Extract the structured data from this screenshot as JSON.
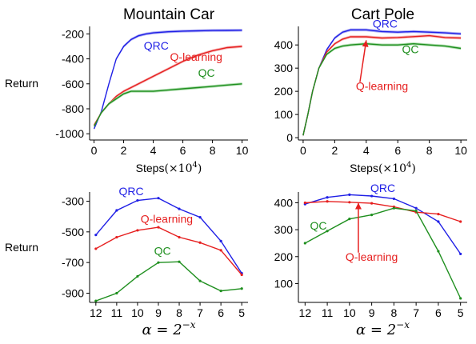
{
  "chart_data": [
    {
      "type": "line",
      "title": "Mountain Car",
      "ylabel": "Return",
      "xlabel": "Steps",
      "xlabel_unit": "(×10",
      "xlabel_exp": "4",
      "xlabel_close": ")",
      "xlim": [
        -0.3,
        10.4
      ],
      "ylim": [
        -1050,
        -140
      ],
      "xticks": [
        0,
        2,
        4,
        6,
        8,
        10
      ],
      "yticks": [
        -200,
        -400,
        -600,
        -800,
        -1000
      ],
      "band": true,
      "series": [
        {
          "name": "QRC",
          "color": "#1f1fe6",
          "band_color": "#8a8af0",
          "x": [
            0,
            0.5,
            1,
            1.5,
            2,
            2.5,
            3,
            3.5,
            4,
            5,
            6,
            7,
            8,
            9,
            10
          ],
          "y": [
            -960,
            -820,
            -600,
            -400,
            -300,
            -245,
            -215,
            -200,
            -192,
            -183,
            -178,
            -175,
            -173,
            -172,
            -171
          ]
        },
        {
          "name": "Q-learning",
          "color": "#e61f1f",
          "band_color": "#f29a9a",
          "x": [
            0,
            0.5,
            1,
            1.5,
            2,
            3,
            4,
            5,
            6,
            7,
            8,
            9,
            10
          ],
          "y": [
            -930,
            -830,
            -760,
            -700,
            -660,
            -600,
            -540,
            -480,
            -420,
            -370,
            -335,
            -310,
            -300
          ]
        },
        {
          "name": "QC",
          "color": "#1f8f1f",
          "band_color": "#8fd08f",
          "x": [
            0,
            0.5,
            1,
            1.5,
            2,
            2.5,
            3,
            4,
            5,
            6,
            7,
            8,
            9,
            10
          ],
          "y": [
            -940,
            -830,
            -760,
            -720,
            -680,
            -660,
            -660,
            -660,
            -650,
            -640,
            -630,
            -620,
            -610,
            -600
          ]
        }
      ],
      "labels": [
        {
          "series": 0,
          "text": "QRC",
          "x": 4.2,
          "y": -325
        },
        {
          "series": 1,
          "text": "Q-learning",
          "x": 6.9,
          "y": -415
        },
        {
          "series": 2,
          "text": "QC",
          "x": 7.6,
          "y": -545
        }
      ]
    },
    {
      "type": "line",
      "title": "Cart Pole",
      "ylabel": "",
      "xlabel": "Steps",
      "xlabel_unit": "(×10",
      "xlabel_exp": "4",
      "xlabel_close": ")",
      "xlim": [
        -0.3,
        10.4
      ],
      "ylim": [
        -10,
        480
      ],
      "xticks": [
        0,
        2,
        4,
        6,
        8,
        10
      ],
      "yticks": [
        0,
        100,
        200,
        300,
        400
      ],
      "band": true,
      "series": [
        {
          "name": "QRC",
          "color": "#1f1fe6",
          "band_color": "#8a8af0",
          "x": [
            0,
            0.3,
            0.6,
            1,
            1.5,
            2,
            2.5,
            3,
            4,
            5,
            6,
            7,
            8,
            9,
            10
          ],
          "y": [
            10,
            100,
            200,
            300,
            380,
            430,
            455,
            465,
            465,
            458,
            455,
            458,
            455,
            452,
            448
          ]
        },
        {
          "name": "Q-learning",
          "color": "#e61f1f",
          "band_color": "#f29a9a",
          "x": [
            0,
            0.3,
            0.6,
            1,
            1.5,
            2,
            2.5,
            3,
            4,
            5,
            6,
            7,
            8,
            9,
            10
          ],
          "y": [
            10,
            100,
            200,
            300,
            370,
            405,
            425,
            435,
            435,
            430,
            432,
            436,
            440,
            432,
            430
          ]
        },
        {
          "name": "QC",
          "color": "#1f8f1f",
          "band_color": "#8fd08f",
          "x": [
            0,
            0.3,
            0.6,
            1,
            1.5,
            2,
            2.5,
            3,
            4,
            5,
            6,
            7,
            8,
            9,
            10
          ],
          "y": [
            10,
            100,
            200,
            300,
            360,
            385,
            395,
            400,
            405,
            400,
            400,
            405,
            400,
            395,
            385
          ]
        }
      ],
      "labels": [
        {
          "series": 0,
          "text": "QRC",
          "x": 5.2,
          "y": 475
        },
        {
          "series": 2,
          "text": "QC",
          "x": 6.8,
          "y": 365
        },
        {
          "series": 1,
          "text": "Q-learning",
          "x": 5.0,
          "y": 205
        }
      ],
      "arrow": {
        "series": 1,
        "from": [
          3.6,
          240
        ],
        "to": [
          4.0,
          420
        ]
      }
    },
    {
      "type": "line",
      "title": "",
      "ylabel": "Return",
      "xlabel": "α = 2^−x",
      "xlim": [
        12.3,
        4.7
      ],
      "ylim": [
        -960,
        -240
      ],
      "xticks": [
        12,
        11,
        10,
        9,
        8,
        7,
        6,
        5
      ],
      "yticks": [
        -300,
        -500,
        -700,
        -900
      ],
      "band": false,
      "series": [
        {
          "name": "QRC",
          "color": "#1f1fe6",
          "x": [
            12,
            11,
            10,
            9,
            8,
            7,
            6,
            5
          ],
          "y": [
            -520,
            -360,
            -295,
            -280,
            -350,
            -405,
            -560,
            -770
          ]
        },
        {
          "name": "Q-learning",
          "color": "#e61f1f",
          "x": [
            12,
            11,
            10,
            9,
            8,
            7,
            6,
            5
          ],
          "y": [
            -610,
            -535,
            -490,
            -470,
            -535,
            -570,
            -620,
            -780
          ]
        },
        {
          "name": "QC",
          "color": "#1f8f1f",
          "x": [
            12,
            11,
            10,
            9,
            8,
            7,
            6,
            5
          ],
          "y": [
            -950,
            -900,
            -790,
            -700,
            -695,
            -820,
            -885,
            -870
          ]
        }
      ],
      "labels": [
        {
          "series": 0,
          "text": "QRC",
          "x": 10.3,
          "y": -260
        },
        {
          "series": 1,
          "text": "Q-learning",
          "x": 8.6,
          "y": -440
        },
        {
          "series": 2,
          "text": "QC",
          "x": 8.8,
          "y": -650
        }
      ]
    },
    {
      "type": "line",
      "title": "",
      "ylabel": "",
      "xlabel": "α = 2^−x",
      "xlim": [
        12.3,
        4.7
      ],
      "ylim": [
        30,
        440
      ],
      "xticks": [
        12,
        11,
        10,
        9,
        8,
        7,
        6,
        5
      ],
      "yticks": [
        100,
        200,
        300,
        400
      ],
      "band": false,
      "series": [
        {
          "name": "QRC",
          "color": "#1f1fe6",
          "x": [
            12,
            11,
            10,
            9,
            8,
            7,
            6,
            5
          ],
          "y": [
            395,
            420,
            430,
            425,
            415,
            380,
            330,
            210
          ]
        },
        {
          "name": "Q-learning",
          "color": "#e61f1f",
          "x": [
            12,
            11,
            10,
            9,
            8,
            7,
            6,
            5
          ],
          "y": [
            400,
            405,
            402,
            398,
            385,
            365,
            358,
            330
          ]
        },
        {
          "name": "QC",
          "color": "#1f8f1f",
          "x": [
            12,
            11,
            10,
            9,
            8,
            7,
            6,
            5
          ],
          "y": [
            250,
            295,
            340,
            355,
            380,
            370,
            220,
            45
          ]
        }
      ],
      "labels": [
        {
          "series": 0,
          "text": "QRC",
          "x": 8.5,
          "y": 440
        },
        {
          "series": 2,
          "text": "QC",
          "x": 11.4,
          "y": 300
        },
        {
          "series": 1,
          "text": "Q-learning",
          "x": 9.0,
          "y": 185
        }
      ],
      "arrow": {
        "series": 1,
        "from": [
          9.6,
          215
        ],
        "to": [
          9.6,
          400
        ]
      }
    }
  ]
}
